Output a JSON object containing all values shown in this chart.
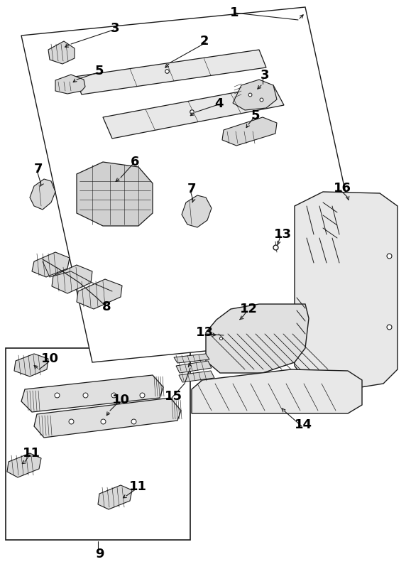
{
  "bg_color": "#ffffff",
  "line_color": "#1a1a1a",
  "fig_width": 5.79,
  "fig_height": 8.08,
  "dpi": 100
}
